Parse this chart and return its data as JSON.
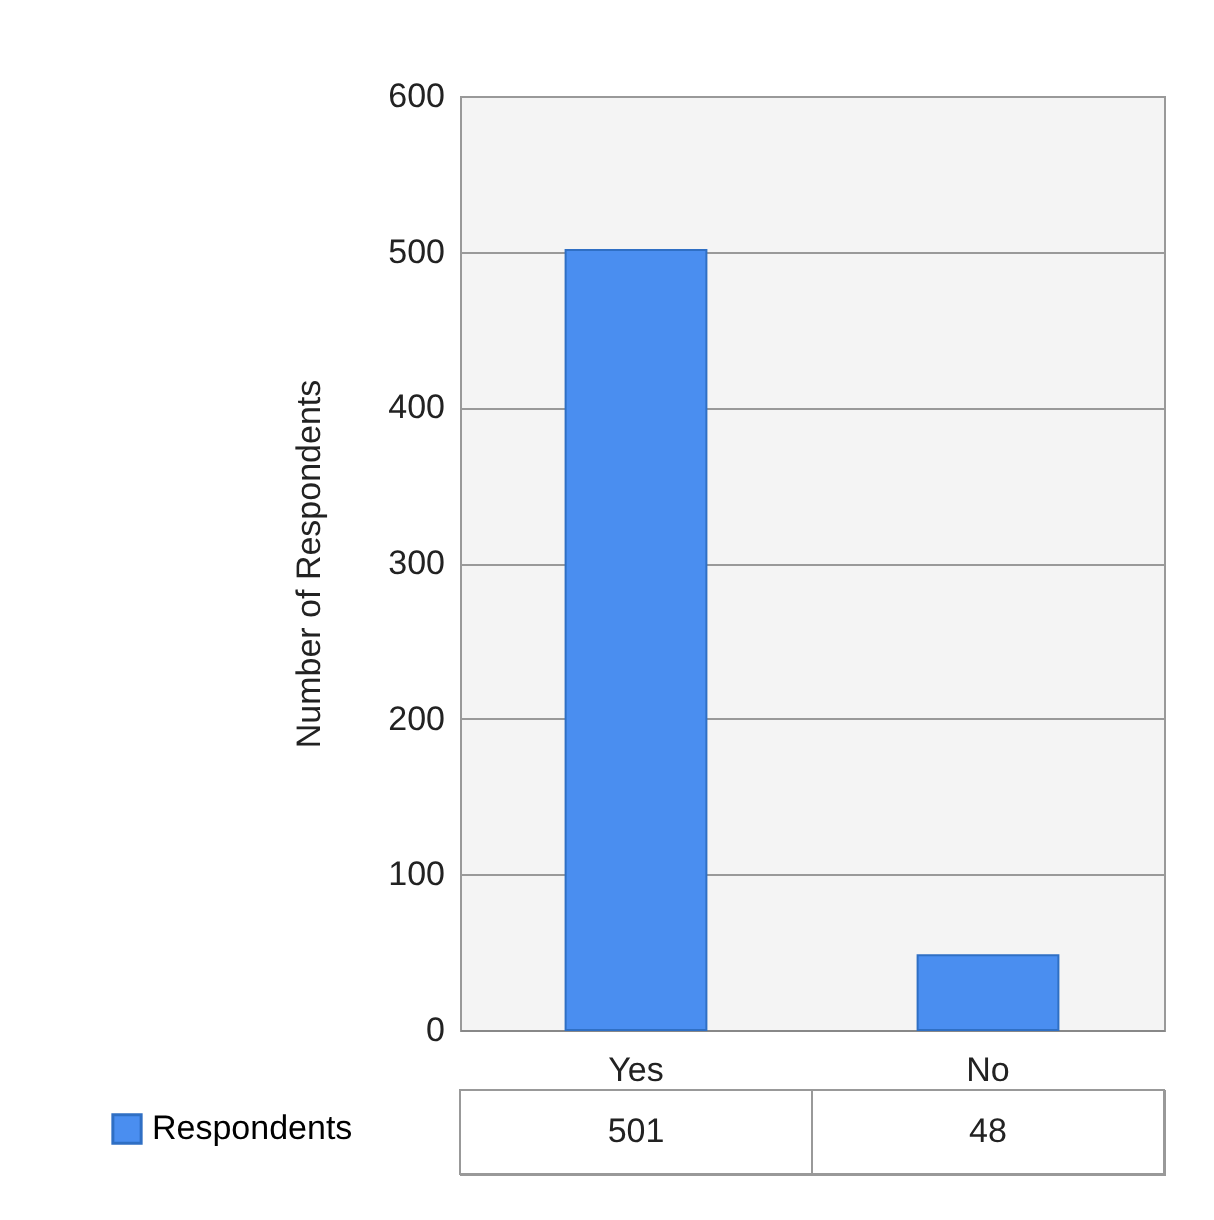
{
  "chart_data": {
    "type": "bar",
    "ylabel": "Number of Respondents",
    "categories": [
      "Yes",
      "No"
    ],
    "series": [
      {
        "name": "Respondents",
        "color": "#4a8ef0",
        "values": [
          501,
          48
        ]
      }
    ],
    "ylim": [
      0,
      600
    ],
    "yticks": [
      0,
      100,
      200,
      300,
      400,
      500,
      600
    ],
    "grid": "y",
    "data_labels": true,
    "legend": "bottom left"
  }
}
